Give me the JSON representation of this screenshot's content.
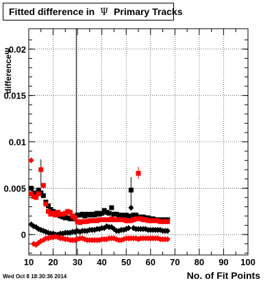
{
  "chart_data": {
    "type": "scatter",
    "title_prefix": "Fitted difference in",
    "title_symbol": "Ψ",
    "title_suffix": "Primary Tracks",
    "xlabel": "No. of Fit Points",
    "ylabel": "differenceΨ",
    "xlim": [
      10,
      100
    ],
    "ylim": [
      -0.0022,
      0.0222
    ],
    "x_ticks": [
      10,
      20,
      30,
      40,
      50,
      60,
      70,
      80,
      90,
      100
    ],
    "y_ticks": [
      {
        "v": 0,
        "label": "0"
      },
      {
        "v": 0.005,
        "label": "0.005"
      },
      {
        "v": 0.01,
        "label": "0.01"
      },
      {
        "v": 0.015,
        "label": "0.015"
      },
      {
        "v": 0.02,
        "label": "0.02"
      }
    ],
    "grid": true,
    "vertical_line_x": 29.5,
    "timestamp": "Wed Oct  8 18:30:36 2014",
    "series": [
      {
        "marker": "square",
        "color": "#000000",
        "points": [
          [
            11,
            0.005
          ],
          [
            12,
            0.0045
          ],
          [
            13,
            0.0042
          ],
          [
            14,
            0.0048
          ],
          [
            15,
            0.0045
          ],
          [
            16,
            0.0042
          ],
          [
            17,
            0.0035
          ],
          [
            18,
            0.0031
          ],
          [
            19,
            0.0027
          ],
          [
            20,
            0.0025
          ],
          [
            21,
            0.0023
          ],
          [
            22,
            0.0021
          ],
          [
            23,
            0.002
          ],
          [
            24,
            0.0019
          ],
          [
            25,
            0.0018
          ],
          [
            26,
            0.0018
          ],
          [
            27,
            0.0017
          ],
          [
            28,
            0.0017
          ],
          [
            29,
            0.0017
          ],
          [
            30,
            0.0021
          ],
          [
            31,
            0.0021
          ],
          [
            32,
            0.0022
          ],
          [
            33,
            0.002
          ],
          [
            34,
            0.0022
          ],
          [
            35,
            0.0021
          ],
          [
            36,
            0.0022
          ],
          [
            37,
            0.0021
          ],
          [
            38,
            0.0023
          ],
          [
            39,
            0.0022
          ],
          [
            40,
            0.0023
          ],
          [
            41,
            0.0026
          ],
          [
            42,
            0.0024
          ],
          [
            43,
            0.0023
          ],
          [
            44,
            0.0029
          ],
          [
            45,
            0.0022
          ],
          [
            46,
            0.0022
          ],
          [
            47,
            0.0021
          ],
          [
            48,
            0.0021
          ],
          [
            49,
            0.002
          ],
          [
            50,
            0.0021
          ],
          [
            51,
            0.002
          ],
          [
            52,
            0.0048
          ],
          [
            53,
            0.0021
          ],
          [
            54,
            0.0021
          ],
          [
            55,
            0.0019
          ],
          [
            56,
            0.0019
          ],
          [
            57,
            0.0019
          ],
          [
            58,
            0.0018
          ],
          [
            59,
            0.0018
          ],
          [
            60,
            0.0017
          ],
          [
            61,
            0.0017
          ],
          [
            62,
            0.0016
          ],
          [
            63,
            0.0016
          ],
          [
            64,
            0.0016
          ],
          [
            65,
            0.0016
          ],
          [
            66,
            0.0016
          ],
          [
            67,
            0.0016
          ]
        ]
      },
      {
        "marker": "square",
        "color": "#ff0000",
        "points": [
          [
            11,
            0.0044
          ],
          [
            12,
            0.0041
          ],
          [
            13,
            0.004
          ],
          [
            14,
            0.0044
          ],
          [
            15,
            0.007
          ],
          [
            16,
            0.0053
          ],
          [
            17,
            0.0033
          ],
          [
            18,
            0.0025
          ],
          [
            19,
            0.0022
          ],
          [
            20,
            0.0023
          ],
          [
            21,
            0.0021
          ],
          [
            22,
            0.0024
          ],
          [
            23,
            0.0022
          ],
          [
            24,
            0.0022
          ],
          [
            25,
            0.0023
          ],
          [
            26,
            0.0025
          ],
          [
            27,
            0.0024
          ],
          [
            28,
            0.002
          ],
          [
            29,
            0.0018
          ],
          [
            30,
            0.0014
          ],
          [
            31,
            0.0013
          ],
          [
            32,
            0.0014
          ],
          [
            33,
            0.0014
          ],
          [
            34,
            0.0014
          ],
          [
            35,
            0.0015
          ],
          [
            36,
            0.0015
          ],
          [
            37,
            0.0015
          ],
          [
            38,
            0.0015
          ],
          [
            39,
            0.0016
          ],
          [
            40,
            0.0016
          ],
          [
            41,
            0.0016
          ],
          [
            42,
            0.0016
          ],
          [
            43,
            0.0016
          ],
          [
            44,
            0.0017
          ],
          [
            45,
            0.0016
          ],
          [
            46,
            0.0016
          ],
          [
            47,
            0.0016
          ],
          [
            48,
            0.0016
          ],
          [
            49,
            0.0016
          ],
          [
            50,
            0.0015
          ],
          [
            51,
            0.0015
          ],
          [
            52,
            0.0015
          ],
          [
            53,
            0.0016
          ],
          [
            54,
            0.0017
          ],
          [
            55,
            0.0066
          ],
          [
            56,
            0.0017
          ],
          [
            57,
            0.0016
          ],
          [
            58,
            0.0016
          ],
          [
            59,
            0.0015
          ],
          [
            60,
            0.0015
          ],
          [
            61,
            0.0015
          ],
          [
            62,
            0.0015
          ],
          [
            63,
            0.0015
          ],
          [
            64,
            0.0014
          ],
          [
            65,
            0.0014
          ],
          [
            66,
            0.0014
          ],
          [
            67,
            0.0014
          ]
        ]
      },
      {
        "marker": "diamond",
        "color": "#000000",
        "points": [
          [
            11,
            0.0011
          ],
          [
            12,
            0.0009
          ],
          [
            13,
            0.0008
          ],
          [
            14,
            0.0006
          ],
          [
            15,
            0.0005
          ],
          [
            16,
            0.0004
          ],
          [
            17,
            0.0003
          ],
          [
            18,
            0.0002
          ],
          [
            19,
            0.0001
          ],
          [
            20,
            0.0001
          ],
          [
            21,
            0.0
          ],
          [
            22,
            0.0
          ],
          [
            23,
            0.0001
          ],
          [
            24,
            0.0001
          ],
          [
            25,
            0.0002
          ],
          [
            26,
            0.0002
          ],
          [
            27,
            0.0002
          ],
          [
            28,
            0.0003
          ],
          [
            29,
            0.0003
          ],
          [
            30,
            0.0004
          ],
          [
            31,
            0.0003
          ],
          [
            32,
            0.0004
          ],
          [
            33,
            0.0004
          ],
          [
            34,
            0.0004
          ],
          [
            35,
            0.0005
          ],
          [
            36,
            0.0005
          ],
          [
            37,
            0.0005
          ],
          [
            38,
            0.0006
          ],
          [
            39,
            0.0006
          ],
          [
            40,
            0.0007
          ],
          [
            41,
            0.0007
          ],
          [
            42,
            0.0009
          ],
          [
            43,
            0.0008
          ],
          [
            44,
            0.0008
          ],
          [
            45,
            0.0006
          ],
          [
            46,
            0.0004
          ],
          [
            47,
            0.0004
          ],
          [
            48,
            0.0005
          ],
          [
            49,
            0.0005
          ],
          [
            50,
            0.0006
          ],
          [
            51,
            0.0007
          ],
          [
            52,
            0.0029
          ],
          [
            53,
            0.0007
          ],
          [
            54,
            0.0006
          ],
          [
            55,
            0.0006
          ],
          [
            56,
            0.0006
          ],
          [
            57,
            0.0006
          ],
          [
            58,
            0.0006
          ],
          [
            59,
            0.0005
          ],
          [
            60,
            0.0005
          ],
          [
            61,
            0.0005
          ],
          [
            62,
            0.0005
          ],
          [
            63,
            0.0005
          ],
          [
            64,
            0.0005
          ],
          [
            65,
            0.0004
          ],
          [
            66,
            0.0004
          ],
          [
            67,
            0.0004
          ]
        ]
      },
      {
        "marker": "diamond",
        "color": "#ff0000",
        "points": [
          [
            11,
            0.008
          ],
          [
            12,
            -0.001
          ],
          [
            13,
            -0.0011
          ],
          [
            14,
            -0.0009
          ],
          [
            15,
            -0.0007
          ],
          [
            16,
            -0.0006
          ],
          [
            17,
            -0.0004
          ],
          [
            18,
            -0.0004
          ],
          [
            19,
            -0.0003
          ],
          [
            20,
            -0.0003
          ],
          [
            21,
            -0.0002
          ],
          [
            22,
            -0.0003
          ],
          [
            23,
            -0.0004
          ],
          [
            24,
            -0.0004
          ],
          [
            25,
            -0.0005
          ],
          [
            26,
            -0.0005
          ],
          [
            27,
            -0.0006
          ],
          [
            28,
            -0.0006
          ],
          [
            29,
            -0.0006
          ],
          [
            30,
            -0.0005
          ],
          [
            31,
            -0.0004
          ],
          [
            32,
            -0.0004
          ],
          [
            33,
            -0.0005
          ],
          [
            34,
            -0.0006
          ],
          [
            35,
            -0.0006
          ],
          [
            36,
            -0.0006
          ],
          [
            37,
            -0.0006
          ],
          [
            38,
            -0.0006
          ],
          [
            39,
            -0.0006
          ],
          [
            40,
            -0.0005
          ],
          [
            41,
            -0.0005
          ],
          [
            42,
            -0.0005
          ],
          [
            43,
            -0.0004
          ],
          [
            44,
            -0.0004
          ],
          [
            45,
            -0.0004
          ],
          [
            46,
            -0.0005
          ],
          [
            47,
            -0.0006
          ],
          [
            48,
            -0.0006
          ],
          [
            49,
            -0.0005
          ],
          [
            50,
            -0.0004
          ],
          [
            51,
            -0.0004
          ],
          [
            52,
            -0.0004
          ],
          [
            53,
            -0.0004
          ],
          [
            54,
            -0.0004
          ],
          [
            55,
            -0.0005
          ],
          [
            56,
            -0.0004
          ],
          [
            57,
            -0.0004
          ],
          [
            58,
            -0.0004
          ],
          [
            59,
            -0.0004
          ],
          [
            60,
            -0.0004
          ],
          [
            61,
            -0.0004
          ],
          [
            62,
            -0.0004
          ],
          [
            63,
            -0.0004
          ],
          [
            64,
            -0.0005
          ],
          [
            65,
            -0.0005
          ],
          [
            66,
            -0.0005
          ],
          [
            67,
            -0.0005
          ]
        ]
      }
    ],
    "error_bars": [
      {
        "x": 15,
        "low": 0.0052,
        "high": 0.0081,
        "color": "#000000"
      },
      {
        "x": 52,
        "low": 0.0031,
        "high": 0.0062,
        "color": "#000000"
      },
      {
        "x": 55,
        "low": 0.006,
        "high": 0.0073,
        "color": "#ff0000"
      }
    ]
  }
}
